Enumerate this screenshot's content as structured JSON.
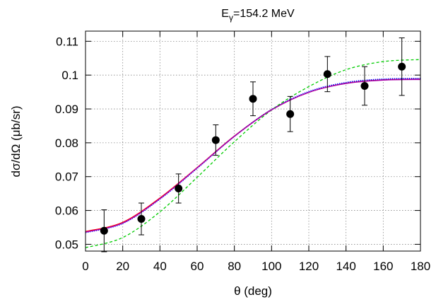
{
  "chart_data": {
    "type": "scatter",
    "title": "E",
    "title_subscript": "γ",
    "title_rest": "=154.2 MeV",
    "xlabel": "θ (deg)",
    "ylabel": "dσ/dΩ (μb/sr)",
    "xlim": [
      0,
      180
    ],
    "ylim": [
      0.048,
      0.113
    ],
    "x_ticks": [
      0,
      20,
      40,
      60,
      80,
      100,
      120,
      140,
      160,
      180
    ],
    "x_tick_labels": [
      "0",
      "20",
      "40",
      "60",
      "80",
      "100",
      "120",
      "140",
      "160",
      "180"
    ],
    "y_ticks": [
      0.05,
      0.06,
      0.07,
      0.08,
      0.09,
      0.1,
      0.11
    ],
    "y_tick_labels": [
      "0.05",
      "0.06",
      "0.07",
      "0.08",
      "0.09",
      "0.1",
      "0.11"
    ],
    "grid": true,
    "legend": "none",
    "data_points": {
      "x": [
        10,
        30,
        50,
        70,
        90,
        110,
        130,
        150,
        170
      ],
      "y": [
        0.054,
        0.0575,
        0.0665,
        0.0808,
        0.093,
        0.0885,
        0.1003,
        0.0968,
        0.1025
      ],
      "yerr": [
        0.0062,
        0.0047,
        0.0043,
        0.0045,
        0.005,
        0.0052,
        0.0052,
        0.0057,
        0.0085
      ],
      "color": "#000000"
    },
    "series": [
      {
        "x": [
          0,
          20,
          40,
          60,
          80,
          100,
          120,
          140,
          160,
          180
        ],
        "y": [
          0.0538,
          0.0565,
          0.0637,
          0.0727,
          0.082,
          0.0898,
          0.0949,
          0.0976,
          0.0986,
          0.0988
        ],
        "color": "#ff0000",
        "style": "solid"
      },
      {
        "x": [
          0,
          20,
          40,
          60,
          80,
          100,
          120,
          140,
          160,
          180
        ],
        "y": [
          0.0535,
          0.0562,
          0.0634,
          0.0725,
          0.0819,
          0.0898,
          0.0951,
          0.0978,
          0.0988,
          0.099
        ],
        "color": "#0000ff",
        "style": "dotted"
      },
      {
        "x": [
          0,
          20,
          40,
          60,
          80,
          100,
          120,
          140,
          160,
          180
        ],
        "y": [
          0.049,
          0.052,
          0.0596,
          0.0698,
          0.0803,
          0.0897,
          0.0966,
          0.1016,
          0.104,
          0.1046
        ],
        "color": "#00cc00",
        "style": "dashed"
      },
      {
        "x": [
          0,
          20,
          40,
          60,
          80,
          100,
          120,
          140,
          160,
          180
        ],
        "y": [
          0.0536,
          0.0563,
          0.0635,
          0.0726,
          0.0819,
          0.0897,
          0.0949,
          0.0975,
          0.0985,
          0.0987
        ],
        "color": "#aa00aa",
        "style": "solid"
      }
    ]
  }
}
